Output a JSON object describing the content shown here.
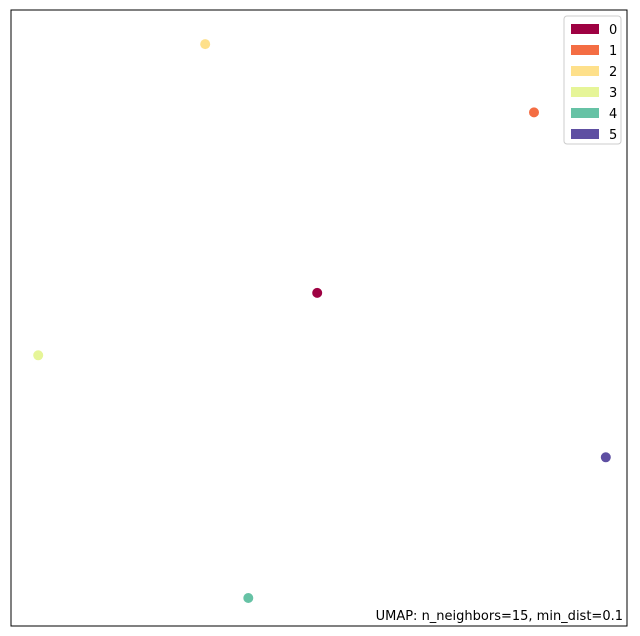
{
  "chart_data": {
    "type": "scatter",
    "title": "",
    "xlabel": "",
    "ylabel": "",
    "xlim": [
      0,
      1
    ],
    "ylim": [
      0,
      1
    ],
    "grid": false,
    "axes_ticks": false,
    "legend_position": "top-right",
    "annotation": "UMAP: n_neighbors=15, min_dist=0.1",
    "points": [
      {
        "label": "0",
        "x": 0.4971,
        "y": 0.5408,
        "color": "#9e0142"
      },
      {
        "label": "1",
        "x": 0.8491,
        "y": 0.8338,
        "color": "#f46d43"
      },
      {
        "label": "2",
        "x": 0.3153,
        "y": 0.9446,
        "color": "#fee08b"
      },
      {
        "label": "3",
        "x": 0.0441,
        "y": 0.4394,
        "color": "#e6f598"
      },
      {
        "label": "4",
        "x": 0.3853,
        "y": 0.0454,
        "color": "#66c2a5"
      },
      {
        "label": "5",
        "x": 0.9656,
        "y": 0.2739,
        "color": "#5e4fa2"
      }
    ],
    "legend": [
      {
        "label": "0",
        "color": "#9e0142"
      },
      {
        "label": "1",
        "color": "#f46d43"
      },
      {
        "label": "2",
        "color": "#fee08b"
      },
      {
        "label": "3",
        "color": "#e6f598"
      },
      {
        "label": "4",
        "color": "#66c2a5"
      },
      {
        "label": "5",
        "color": "#5e4fa2"
      }
    ]
  }
}
